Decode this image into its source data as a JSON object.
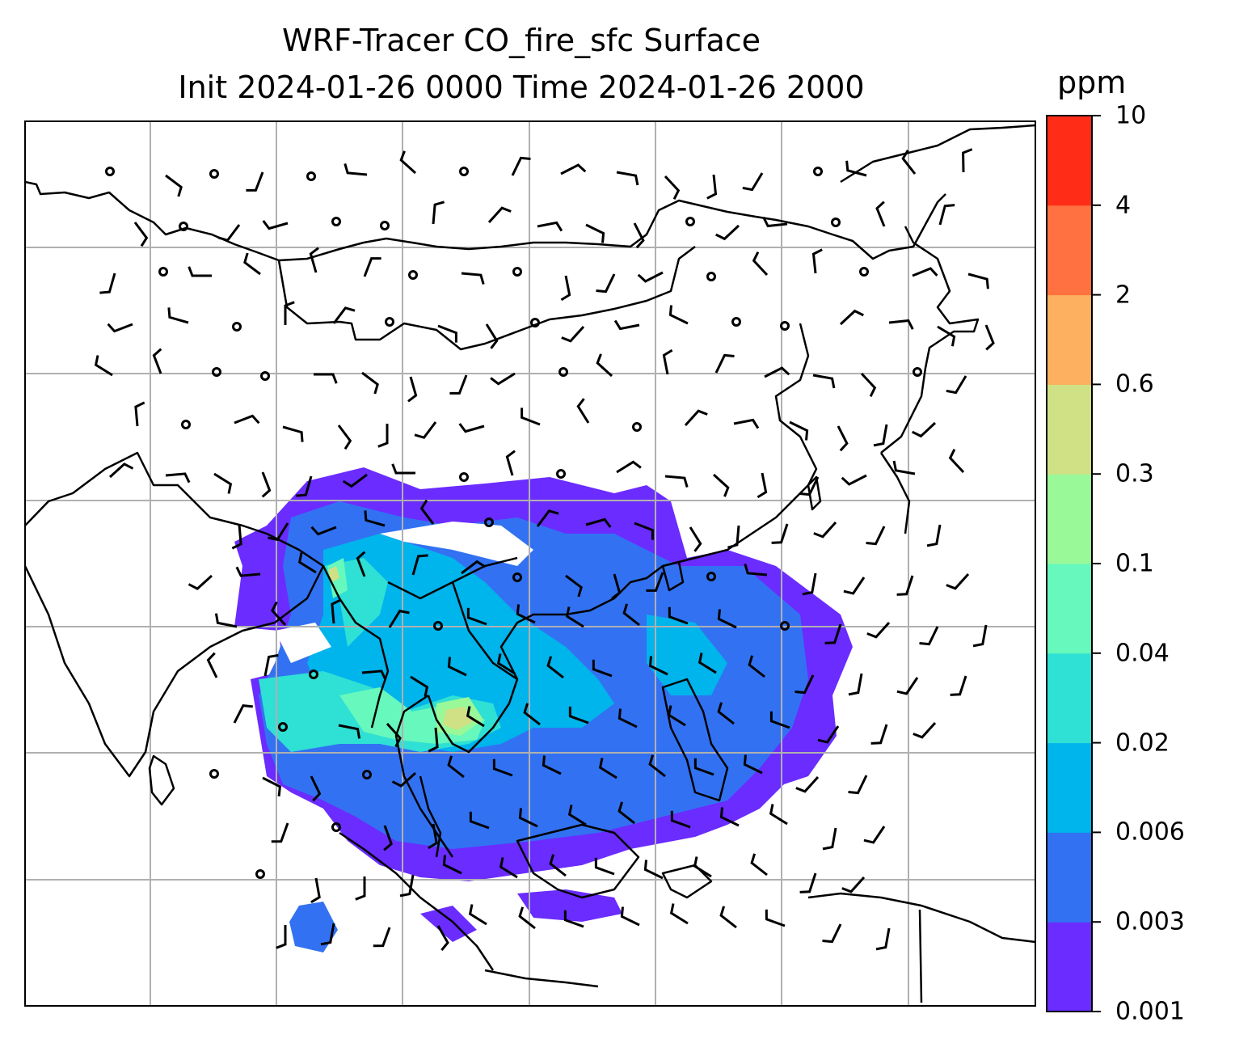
{
  "title_line1": "WRF-Tracer CO_fire_sfc Surface",
  "title_line2": "Init 2024-01-26 0000 Time 2024-01-26 2000",
  "colorbar": {
    "unit": "ppm",
    "levels": [
      "0.001",
      "0.003",
      "0.006",
      "0.02",
      "0.04",
      "0.1",
      "0.3",
      "0.6",
      "2",
      "4",
      "10"
    ],
    "colors": [
      "#6a2cff",
      "#3272f2",
      "#00b4ec",
      "#2fe0d4",
      "#66f8bc",
      "#99f898",
      "#d0e084",
      "#fdb05f",
      "#ff7140",
      "#ff2d18"
    ]
  },
  "map": {
    "gridlines": true,
    "fields": [
      "coastlines",
      "country-borders",
      "wind-barbs",
      "calm-circles",
      "co-fire-concentration"
    ]
  }
}
